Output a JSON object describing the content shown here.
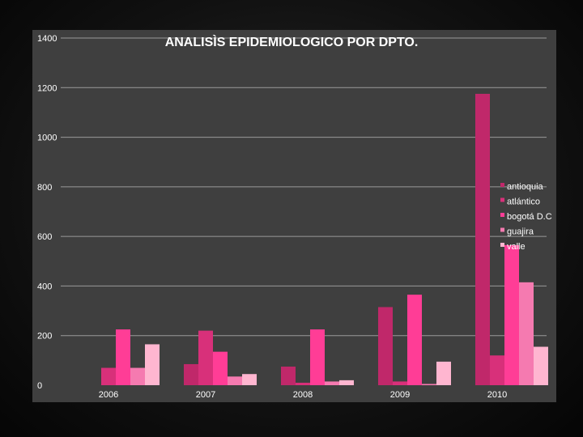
{
  "chart_data": {
    "type": "bar",
    "title": "ANALISÌS EPIDEMIOLOGICO POR DPTO.",
    "xlabel": "",
    "ylabel": "",
    "ylim": [
      0,
      1400
    ],
    "yticks": [
      0,
      200,
      400,
      600,
      800,
      1000,
      1200,
      1400
    ],
    "grid": true,
    "legend_position": "right",
    "categories": [
      "2006",
      "2007",
      "2008",
      "2009",
      "2010"
    ],
    "series": [
      {
        "name": "antioquia",
        "color": "#c0286a",
        "values": [
          0,
          85,
          75,
          315,
          1175
        ]
      },
      {
        "name": "atlántico",
        "color": "#d8307a",
        "values": [
          70,
          220,
          10,
          15,
          120
        ]
      },
      {
        "name": "bogotá D.C",
        "color": "#ff3d96",
        "values": [
          225,
          135,
          225,
          365,
          565
        ]
      },
      {
        "name": "guajira",
        "color": "#f57ab0",
        "values": [
          70,
          35,
          15,
          5,
          415
        ]
      },
      {
        "name": "valle",
        "color": "#ffb6d0",
        "values": [
          165,
          45,
          20,
          95,
          155
        ]
      }
    ]
  }
}
